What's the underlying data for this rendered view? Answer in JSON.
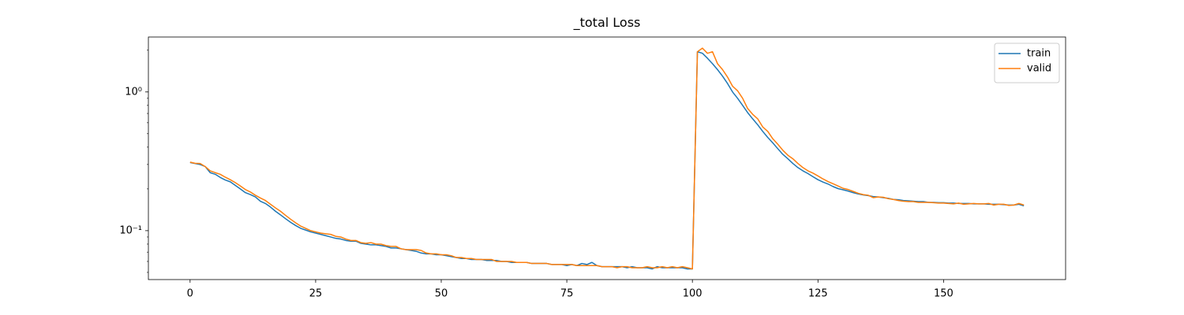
{
  "chart_data": {
    "type": "line",
    "title": "_total Loss",
    "x": [
      0,
      1,
      2,
      3,
      4,
      5,
      6,
      7,
      8,
      9,
      10,
      11,
      12,
      13,
      14,
      15,
      16,
      17,
      18,
      19,
      20,
      21,
      22,
      23,
      24,
      25,
      26,
      27,
      28,
      29,
      30,
      31,
      32,
      33,
      34,
      35,
      36,
      37,
      38,
      39,
      40,
      41,
      42,
      43,
      44,
      45,
      46,
      47,
      48,
      49,
      50,
      51,
      52,
      53,
      54,
      55,
      56,
      57,
      58,
      59,
      60,
      61,
      62,
      63,
      64,
      65,
      66,
      67,
      68,
      69,
      70,
      71,
      72,
      73,
      74,
      75,
      76,
      77,
      78,
      79,
      80,
      81,
      82,
      83,
      84,
      85,
      86,
      87,
      88,
      89,
      90,
      91,
      92,
      93,
      94,
      95,
      96,
      97,
      98,
      99,
      100,
      101,
      102,
      103,
      104,
      105,
      106,
      107,
      108,
      109,
      110,
      111,
      112,
      113,
      114,
      115,
      116,
      117,
      118,
      119,
      120,
      121,
      122,
      123,
      124,
      125,
      126,
      127,
      128,
      129,
      130,
      131,
      132,
      133,
      134,
      135,
      136,
      137,
      138,
      139,
      140,
      141,
      142,
      143,
      144,
      145,
      146,
      147,
      148,
      149,
      150,
      151,
      152,
      153,
      154,
      155,
      156,
      157,
      158,
      159,
      160,
      161,
      162,
      163,
      164,
      165,
      166
    ],
    "series": [
      {
        "name": "train",
        "color": "#1f77b4",
        "values": [
          0.31,
          0.305,
          0.3,
          0.29,
          0.262,
          0.255,
          0.242,
          0.232,
          0.225,
          0.212,
          0.2,
          0.188,
          0.182,
          0.175,
          0.163,
          0.157,
          0.148,
          0.138,
          0.13,
          0.122,
          0.115,
          0.109,
          0.104,
          0.101,
          0.098,
          0.096,
          0.094,
          0.092,
          0.09,
          0.088,
          0.087,
          0.085,
          0.084,
          0.084,
          0.081,
          0.08,
          0.079,
          0.079,
          0.078,
          0.077,
          0.075,
          0.075,
          0.074,
          0.073,
          0.072,
          0.071,
          0.069,
          0.068,
          0.068,
          0.067,
          0.067,
          0.066,
          0.065,
          0.064,
          0.063,
          0.063,
          0.062,
          0.062,
          0.062,
          0.061,
          0.061,
          0.061,
          0.06,
          0.06,
          0.059,
          0.059,
          0.059,
          0.059,
          0.058,
          0.058,
          0.058,
          0.058,
          0.057,
          0.057,
          0.057,
          0.056,
          0.057,
          0.056,
          0.058,
          0.057,
          0.059,
          0.056,
          0.055,
          0.055,
          0.055,
          0.055,
          0.055,
          0.054,
          0.055,
          0.054,
          0.054,
          0.054,
          0.053,
          0.055,
          0.054,
          0.054,
          0.054,
          0.054,
          0.054,
          0.053,
          0.053,
          1.95,
          1.9,
          1.75,
          1.6,
          1.45,
          1.3,
          1.15,
          1.0,
          0.9,
          0.8,
          0.71,
          0.64,
          0.58,
          0.52,
          0.47,
          0.43,
          0.39,
          0.355,
          0.33,
          0.305,
          0.285,
          0.27,
          0.258,
          0.245,
          0.233,
          0.224,
          0.217,
          0.208,
          0.201,
          0.197,
          0.193,
          0.188,
          0.184,
          0.181,
          0.179,
          0.176,
          0.175,
          0.173,
          0.171,
          0.168,
          0.167,
          0.165,
          0.164,
          0.163,
          0.162,
          0.162,
          0.16,
          0.16,
          0.159,
          0.159,
          0.158,
          0.158,
          0.157,
          0.157,
          0.157,
          0.156,
          0.156,
          0.156,
          0.155,
          0.155,
          0.155,
          0.154,
          0.153,
          0.153,
          0.155,
          0.151
        ]
      },
      {
        "name": "valid",
        "color": "#ff7f0e",
        "values": [
          0.312,
          0.306,
          0.305,
          0.29,
          0.27,
          0.262,
          0.255,
          0.243,
          0.233,
          0.222,
          0.21,
          0.198,
          0.19,
          0.18,
          0.172,
          0.165,
          0.155,
          0.146,
          0.138,
          0.129,
          0.121,
          0.114,
          0.108,
          0.104,
          0.1,
          0.098,
          0.096,
          0.095,
          0.094,
          0.091,
          0.09,
          0.087,
          0.085,
          0.085,
          0.082,
          0.081,
          0.082,
          0.08,
          0.08,
          0.078,
          0.077,
          0.077,
          0.074,
          0.073,
          0.073,
          0.073,
          0.072,
          0.069,
          0.068,
          0.068,
          0.067,
          0.067,
          0.066,
          0.064,
          0.064,
          0.063,
          0.063,
          0.062,
          0.062,
          0.062,
          0.062,
          0.06,
          0.06,
          0.06,
          0.06,
          0.059,
          0.059,
          0.059,
          0.058,
          0.058,
          0.058,
          0.058,
          0.057,
          0.057,
          0.057,
          0.057,
          0.057,
          0.056,
          0.056,
          0.056,
          0.056,
          0.056,
          0.055,
          0.055,
          0.055,
          0.054,
          0.055,
          0.055,
          0.054,
          0.054,
          0.054,
          0.055,
          0.054,
          0.054,
          0.055,
          0.054,
          0.055,
          0.054,
          0.055,
          0.054,
          0.053,
          1.95,
          2.07,
          1.9,
          1.95,
          1.6,
          1.45,
          1.28,
          1.1,
          1.02,
          0.9,
          0.76,
          0.69,
          0.64,
          0.56,
          0.52,
          0.46,
          0.42,
          0.38,
          0.35,
          0.33,
          0.305,
          0.285,
          0.27,
          0.26,
          0.248,
          0.236,
          0.226,
          0.218,
          0.21,
          0.202,
          0.198,
          0.192,
          0.186,
          0.182,
          0.18,
          0.173,
          0.175,
          0.174,
          0.17,
          0.168,
          0.165,
          0.163,
          0.162,
          0.162,
          0.16,
          0.16,
          0.16,
          0.159,
          0.158,
          0.158,
          0.157,
          0.156,
          0.158,
          0.155,
          0.156,
          0.157,
          0.156,
          0.156,
          0.157,
          0.153,
          0.155,
          0.155,
          0.152,
          0.153,
          0.157,
          0.153
        ]
      }
    ],
    "xlim": [
      -8.3,
      174.3
    ],
    "xticks": [
      0,
      25,
      50,
      75,
      100,
      125,
      150
    ],
    "ylim": [
      0.0444,
      2.49
    ],
    "log_y": true,
    "yticks": [
      {
        "value": 0.1,
        "label": "10⁻¹"
      },
      {
        "value": 1,
        "label": "10⁰"
      }
    ],
    "yminorticks": [
      0.05,
      0.06,
      0.07,
      0.08,
      0.09,
      0.2,
      0.3,
      0.4,
      0.5,
      0.6,
      0.7,
      0.8,
      0.9,
      2
    ],
    "legend": "upper right"
  }
}
